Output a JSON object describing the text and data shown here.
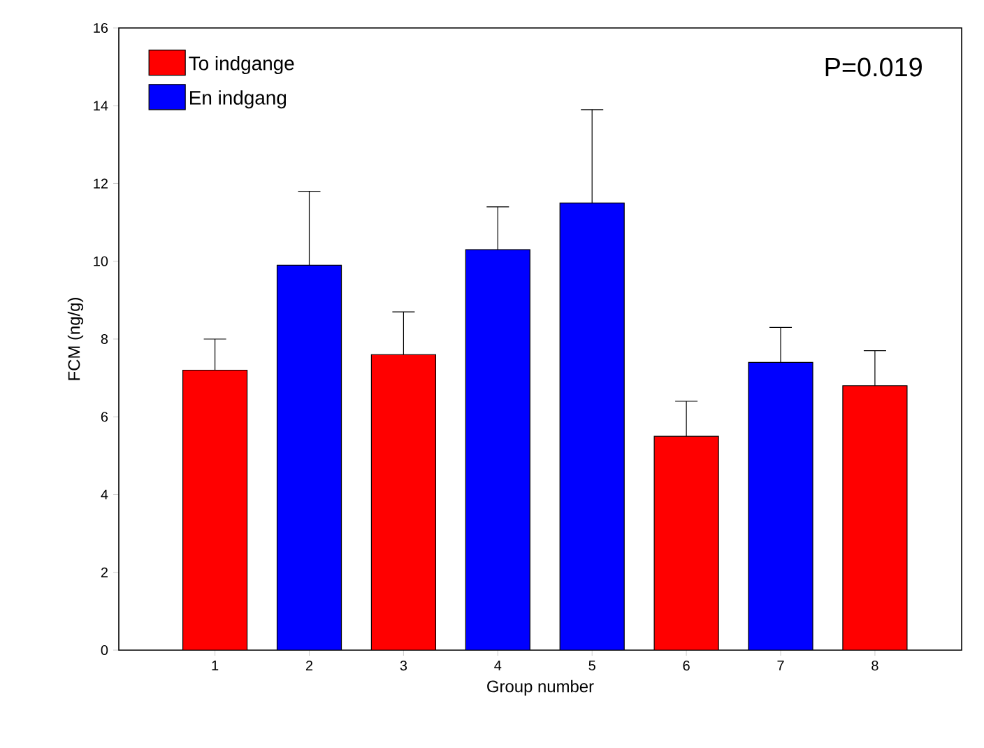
{
  "chart_data": {
    "type": "bar",
    "xlabel": "Group number",
    "ylabel": "FCM (ng/g)",
    "categories": [
      "1",
      "2",
      "3",
      "4",
      "5",
      "6",
      "7",
      "8"
    ],
    "series": [
      {
        "name": "To indgange",
        "color": "#ff0000",
        "values": [
          7.2,
          null,
          7.6,
          null,
          null,
          5.5,
          null,
          6.8
        ],
        "errors": [
          [
            7.2,
            8.0
          ],
          null,
          [
            7.6,
            8.7
          ],
          null,
          null,
          [
            5.5,
            6.4
          ],
          null,
          [
            6.8,
            7.7
          ]
        ]
      },
      {
        "name": "En indgang",
        "color": "#0000ff",
        "values": [
          null,
          9.9,
          null,
          10.3,
          11.5,
          null,
          7.4,
          null
        ],
        "errors": [
          null,
          [
            9.9,
            11.8
          ],
          null,
          [
            10.3,
            11.4
          ],
          [
            11.5,
            13.9
          ],
          null,
          [
            7.4,
            8.3
          ],
          null
        ]
      }
    ],
    "ylim": [
      0,
      16
    ],
    "yticks": [
      0,
      2,
      4,
      6,
      8,
      10,
      12,
      14,
      16
    ],
    "grid": false,
    "legend": "top left",
    "annotations": [
      "P=0.019"
    ]
  }
}
